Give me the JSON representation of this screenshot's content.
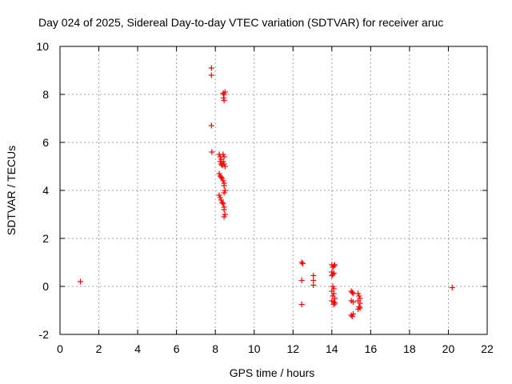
{
  "chart_data": {
    "type": "scatter",
    "title": "Day 024 of 2025, Sidereal Day-to-day VTEC variation (SDTVAR) for receiver aruc",
    "xlabel": "GPS time / hours",
    "ylabel": "SDTVAR / TECUs",
    "xlim": [
      0,
      22
    ],
    "ylim": [
      -2,
      10
    ],
    "xticks": [
      0,
      2,
      4,
      6,
      8,
      10,
      12,
      14,
      16,
      18,
      20,
      22
    ],
    "yticks": [
      -2,
      0,
      2,
      4,
      6,
      8,
      10
    ],
    "grid": true,
    "marker": "+",
    "color": "#ff0000",
    "series": [
      {
        "name": "SDTVAR",
        "points": [
          [
            1.05,
            0.2
          ],
          [
            7.8,
            9.1
          ],
          [
            7.8,
            8.8
          ],
          [
            7.8,
            6.7
          ],
          [
            7.82,
            5.6
          ],
          [
            8.2,
            5.5
          ],
          [
            8.25,
            5.4
          ],
          [
            8.3,
            5.3
          ],
          [
            8.25,
            5.2
          ],
          [
            8.3,
            5.1
          ],
          [
            8.35,
            5.05
          ],
          [
            8.4,
            5.5
          ],
          [
            8.45,
            5.4
          ],
          [
            8.4,
            5.2
          ],
          [
            8.45,
            5.1
          ],
          [
            8.5,
            5.0
          ],
          [
            8.2,
            4.7
          ],
          [
            8.25,
            4.6
          ],
          [
            8.3,
            4.55
          ],
          [
            8.35,
            4.5
          ],
          [
            8.4,
            4.4
          ],
          [
            8.45,
            4.3
          ],
          [
            8.45,
            4.2
          ],
          [
            8.5,
            4.0
          ],
          [
            8.45,
            3.9
          ],
          [
            8.2,
            3.8
          ],
          [
            8.25,
            3.7
          ],
          [
            8.3,
            3.6
          ],
          [
            8.35,
            3.5
          ],
          [
            8.4,
            3.45
          ],
          [
            8.45,
            3.3
          ],
          [
            8.45,
            3.2
          ],
          [
            8.5,
            3.0
          ],
          [
            8.45,
            2.9
          ],
          [
            8.4,
            8.05
          ],
          [
            8.45,
            8.0
          ],
          [
            8.5,
            8.1
          ],
          [
            8.42,
            7.85
          ],
          [
            8.45,
            7.75
          ],
          [
            12.45,
            1.0
          ],
          [
            12.5,
            0.95
          ],
          [
            12.45,
            0.25
          ],
          [
            12.45,
            -0.75
          ],
          [
            13.05,
            0.45
          ],
          [
            13.05,
            0.25
          ],
          [
            13.05,
            0.05
          ],
          [
            14.0,
            0.9
          ],
          [
            14.05,
            0.8
          ],
          [
            14.1,
            0.85
          ],
          [
            14.15,
            0.9
          ],
          [
            14.0,
            0.6
          ],
          [
            14.05,
            0.5
          ],
          [
            14.1,
            0.55
          ],
          [
            14.0,
            0.45
          ],
          [
            14.05,
            0.0
          ],
          [
            14.1,
            -0.1
          ],
          [
            14.0,
            -0.2
          ],
          [
            14.1,
            -0.3
          ],
          [
            14.05,
            -0.4
          ],
          [
            14.15,
            -0.5
          ],
          [
            14.0,
            -0.6
          ],
          [
            14.1,
            -0.65
          ],
          [
            14.15,
            -0.7
          ],
          [
            14.1,
            -0.75
          ],
          [
            15.0,
            -0.2
          ],
          [
            15.05,
            -0.25
          ],
          [
            15.1,
            -0.3
          ],
          [
            15.0,
            -0.6
          ],
          [
            15.1,
            -0.65
          ],
          [
            15.0,
            -1.2
          ],
          [
            15.05,
            -1.25
          ],
          [
            15.1,
            -1.15
          ],
          [
            15.35,
            -0.3
          ],
          [
            15.4,
            -0.4
          ],
          [
            15.45,
            -0.5
          ],
          [
            15.35,
            -0.6
          ],
          [
            15.45,
            -0.7
          ],
          [
            15.4,
            -0.85
          ],
          [
            15.35,
            -0.95
          ],
          [
            15.45,
            -0.9
          ],
          [
            20.2,
            -0.05
          ]
        ]
      }
    ]
  }
}
